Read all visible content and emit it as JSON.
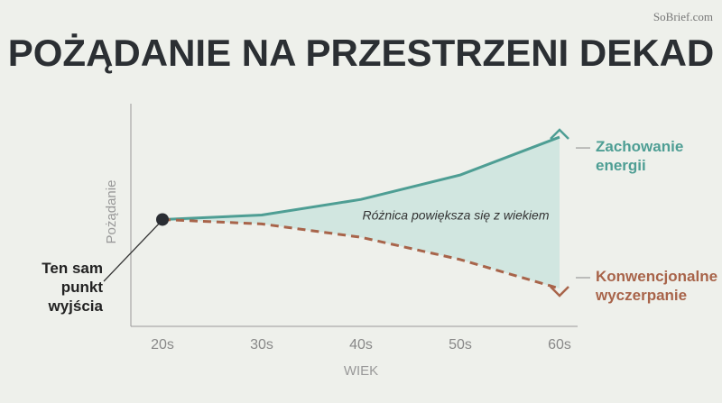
{
  "watermark": "SoBrief.com",
  "chart_data": {
    "type": "line",
    "title": "POŻĄDANIE NA PRZESTRZENI DEKAD",
    "x_label": "WIEK",
    "y_label": "Pożądanie",
    "categories": [
      "20s",
      "30s",
      "40s",
      "50s",
      "60s"
    ],
    "ylim": [
      0,
      100
    ],
    "series": [
      {
        "name": "Zachowanie energii",
        "color": "#4e9e94",
        "dashed": false,
        "values": [
          48,
          50,
          57,
          68,
          85
        ]
      },
      {
        "name": "Konwencjonalne wyczerpanie",
        "color": "#a8644a",
        "dashed": true,
        "values": [
          48,
          46,
          40,
          30,
          17
        ]
      }
    ],
    "fill_between": "#c9e3dd",
    "annotations": [
      "Różnica powiększa się z wiekiem",
      "Ten sam punkt wyjścia"
    ]
  }
}
